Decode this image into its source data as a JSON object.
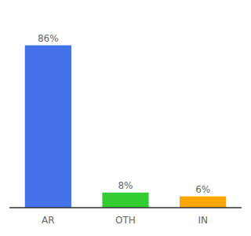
{
  "chart_data": {
    "type": "bar",
    "categories": [
      "AR",
      "OTH",
      "IN"
    ],
    "values": [
      86,
      8,
      6
    ],
    "value_labels": [
      "86%",
      "8%",
      "6%"
    ],
    "colors": [
      "#4472E8",
      "#33CC33",
      "#FFA500"
    ],
    "ylim": [
      0,
      100
    ],
    "data_labels": true,
    "tick_labels": "x"
  }
}
